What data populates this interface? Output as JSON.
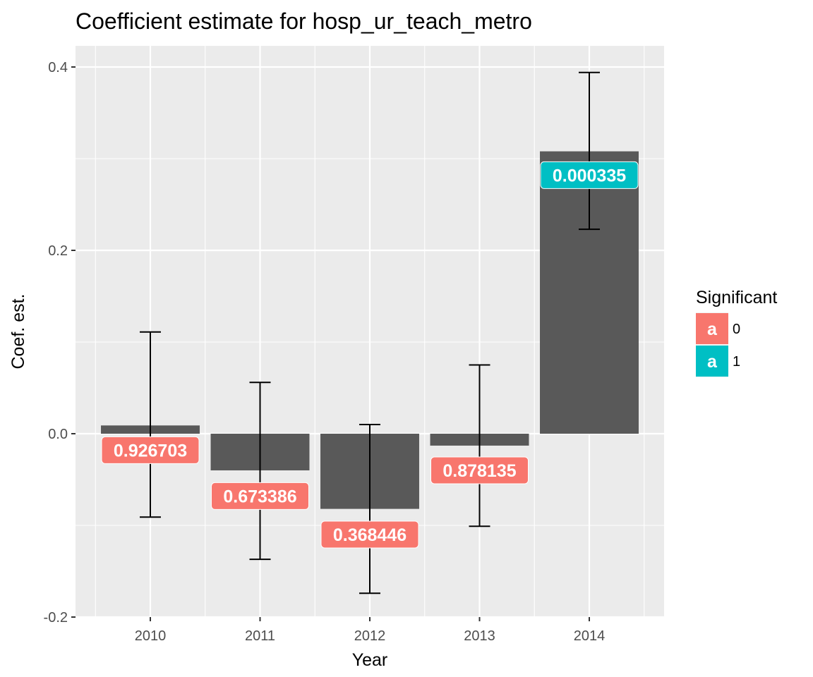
{
  "chart_data": {
    "type": "bar",
    "title": "Coefficient estimate for hosp_ur_teach_metro",
    "xlabel": "Year",
    "ylabel": "Coef. est.",
    "categories": [
      "2010",
      "2011",
      "2012",
      "2013",
      "2014"
    ],
    "values": [
      0.009,
      -0.04,
      -0.082,
      -0.013,
      0.308
    ],
    "error_low": [
      -0.091,
      -0.137,
      -0.174,
      -0.101,
      0.223
    ],
    "error_high": [
      0.111,
      0.056,
      0.01,
      0.075,
      0.394
    ],
    "labels": [
      "0.926703",
      "0.673386",
      "0.368446",
      "0.878135",
      "0.000335"
    ],
    "label_y": [
      -0.018,
      -0.068,
      -0.11,
      -0.04,
      0.282
    ],
    "significant": [
      "0",
      "0",
      "0",
      "0",
      "1"
    ],
    "ylim": [
      -0.2,
      0.4
    ],
    "yticks": [
      -0.2,
      0.0,
      0.2,
      0.4
    ],
    "ytick_labels": [
      "-0.2",
      "0.0",
      "0.2",
      "0.4"
    ],
    "grid": true,
    "bar_color": "#595959",
    "legend": {
      "title": "Significant",
      "position": "right",
      "key_glyph": "a",
      "entries": [
        {
          "label": "0",
          "color": "#F8766D"
        },
        {
          "label": "1",
          "color": "#00BFC4"
        }
      ]
    }
  }
}
